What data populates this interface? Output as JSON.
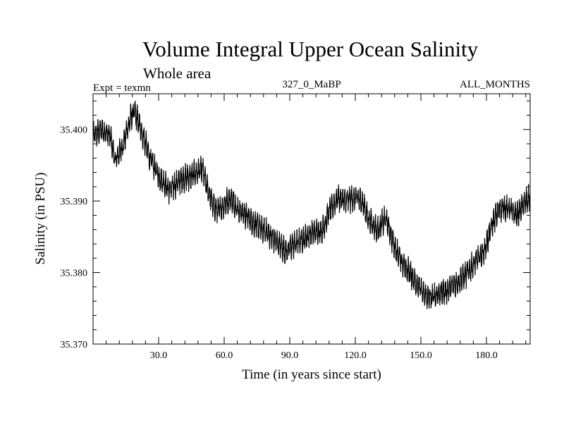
{
  "chart_data": {
    "type": "line",
    "title": "Volume Integral Upper Ocean Salinity",
    "subtitle": "Whole area",
    "left_note": "Expt = texmn",
    "center_note": "327_0_MaBP",
    "right_note": "ALL_MONTHS",
    "xlabel": "Time (in years since start)",
    "ylabel": "Salinity (in PSU)",
    "xlim": [
      0,
      200
    ],
    "ylim": [
      35.37,
      35.405
    ],
    "x_ticks": [
      {
        "value": 30,
        "label": "30.0"
      },
      {
        "value": 60,
        "label": "60.0"
      },
      {
        "value": 90,
        "label": "90.0"
      },
      {
        "value": 120,
        "label": "120.0"
      },
      {
        "value": 150,
        "label": "150.0"
      },
      {
        "value": 180,
        "label": "180.0"
      }
    ],
    "y_ticks": [
      {
        "value": 35.37,
        "label": "35.370"
      },
      {
        "value": 35.38,
        "label": "35.380"
      },
      {
        "value": 35.39,
        "label": "35.390"
      },
      {
        "value": 35.4,
        "label": "35.400"
      }
    ],
    "grid": false,
    "series": [
      {
        "name": "Salinity",
        "sampling": "monthly",
        "x": [
          0,
          4,
          8,
          10,
          14,
          17,
          19,
          22,
          26,
          30,
          35,
          40,
          45,
          50,
          52,
          55,
          57,
          60,
          63,
          66,
          70,
          75,
          80,
          85,
          88,
          90,
          95,
          100,
          105,
          108,
          112,
          115,
          120,
          123,
          126,
          130,
          134,
          137,
          141,
          145,
          149,
          151,
          153,
          155,
          158,
          162,
          166,
          170,
          175,
          179,
          183,
          186,
          190,
          194,
          197,
          200
        ],
        "y": [
          35.399,
          35.4,
          35.399,
          35.3955,
          35.398,
          35.4015,
          35.4025,
          35.4,
          35.396,
          35.3935,
          35.3915,
          35.393,
          35.3935,
          35.3945,
          35.392,
          35.3895,
          35.3885,
          35.3895,
          35.3905,
          35.389,
          35.388,
          35.3865,
          35.3855,
          35.384,
          35.383,
          35.3835,
          35.3845,
          35.3855,
          35.386,
          35.3885,
          35.3905,
          35.39,
          35.3905,
          35.39,
          35.3875,
          35.386,
          35.3875,
          35.3845,
          35.3815,
          35.38,
          35.378,
          35.377,
          35.3765,
          35.3765,
          35.377,
          35.3775,
          35.3785,
          35.3795,
          35.3815,
          35.383,
          35.387,
          35.389,
          35.389,
          35.388,
          35.3895,
          35.3905
        ],
        "noise_amplitude": 0.0021
      }
    ]
  }
}
